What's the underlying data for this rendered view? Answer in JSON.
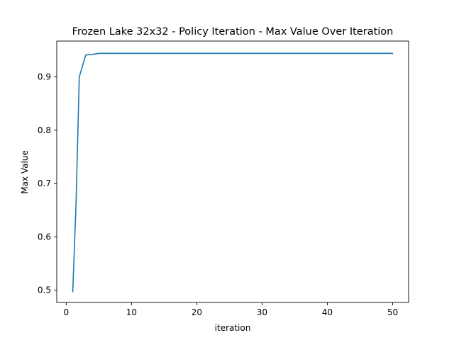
{
  "chart_data": {
    "type": "line",
    "title": "Frozen Lake 32x32 - Policy Iteration - Max Value Over Iteration",
    "xlabel": "iteration",
    "ylabel": "Max Value",
    "xlim": [
      -1.45,
      52.45
    ],
    "ylim": [
      0.477,
      0.967
    ],
    "xticks": [
      0,
      10,
      20,
      30,
      40,
      50
    ],
    "yticks": [
      0.5,
      0.6,
      0.7,
      0.8,
      0.9
    ],
    "xtick_labels": [
      "0",
      "10",
      "20",
      "30",
      "40",
      "50"
    ],
    "ytick_labels": [
      "0.5",
      "0.6",
      "0.7",
      "0.8",
      "0.9"
    ],
    "grid": false,
    "series": [
      {
        "color": "#1f77b4",
        "x": [
          1,
          1.5,
          2,
          3,
          4,
          5,
          6,
          7,
          8,
          9,
          10,
          11,
          12,
          13,
          14,
          15,
          16,
          17,
          18,
          19,
          20,
          21,
          22,
          23,
          24,
          25,
          26,
          27,
          28,
          29,
          30,
          31,
          32,
          33,
          34,
          35,
          36,
          37,
          38,
          39,
          40,
          41,
          42,
          43,
          44,
          45,
          46,
          47,
          48,
          49,
          50
        ],
        "y": [
          0.497,
          0.66,
          0.9,
          0.941,
          0.942,
          0.944,
          0.944,
          0.944,
          0.944,
          0.944,
          0.944,
          0.944,
          0.944,
          0.944,
          0.944,
          0.944,
          0.944,
          0.944,
          0.944,
          0.944,
          0.944,
          0.944,
          0.944,
          0.944,
          0.944,
          0.944,
          0.944,
          0.944,
          0.944,
          0.944,
          0.944,
          0.944,
          0.944,
          0.944,
          0.944,
          0.944,
          0.944,
          0.944,
          0.944,
          0.944,
          0.944,
          0.944,
          0.944,
          0.944,
          0.944,
          0.944,
          0.944,
          0.944,
          0.944,
          0.944,
          0.944
        ]
      }
    ]
  }
}
